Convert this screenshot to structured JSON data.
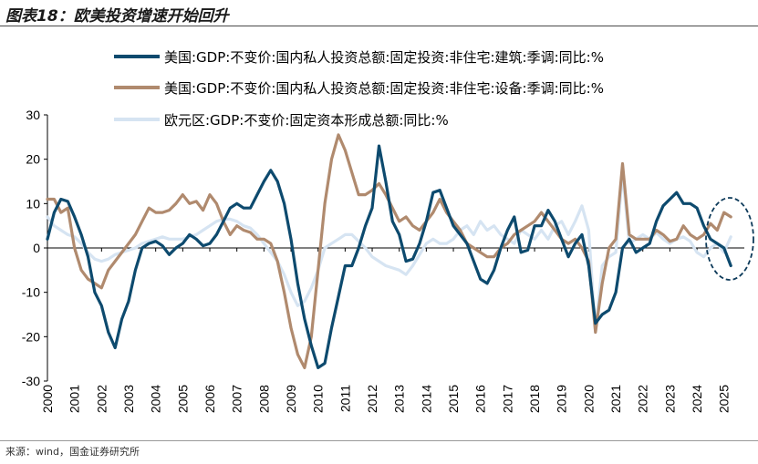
{
  "header": {
    "title": "图表18：欧美投资增速开始回升"
  },
  "footer": {
    "source": "来源：wind，国金证券研究所"
  },
  "colors": {
    "series_us_building": "#0d4a6e",
    "series_us_equipment": "#b08a6e",
    "series_eu": "#d6e4f2",
    "axis": "#000000",
    "ellipse": "#0d3a5a"
  },
  "chart_data": {
    "type": "line",
    "title": "图表18：欧美投资增速开始回升",
    "xlabel": "",
    "ylabel": "",
    "ylim": [
      -30,
      30
    ],
    "xlim": [
      2000.0,
      2025.75
    ],
    "yticks": [
      "30",
      "20",
      "10",
      "0",
      "-10",
      "-20",
      "-30"
    ],
    "ytick_values": [
      30,
      20,
      10,
      0,
      -10,
      -20,
      -30
    ],
    "xticks": [
      "2000",
      "2001",
      "2002",
      "2003",
      "2004",
      "2005",
      "2006",
      "2007",
      "2008",
      "2009",
      "2010",
      "2011",
      "2012",
      "2013",
      "2014",
      "2015",
      "2016",
      "2017",
      "2018",
      "2019",
      "2020",
      "2021",
      "2022",
      "2023",
      "2024",
      "2025"
    ],
    "legend_position": "top",
    "annotation": "dashed ellipse highlighting 2024-2025 rebound",
    "series": [
      {
        "name": "美国:GDP:不变价:国内私人投资总额:固定投资:非住宅:建筑:季调:同比:%",
        "points": [
          [
            2000.0,
            2
          ],
          [
            2000.25,
            8
          ],
          [
            2000.5,
            11
          ],
          [
            2000.75,
            10.5
          ],
          [
            2001.0,
            7
          ],
          [
            2001.25,
            3
          ],
          [
            2001.5,
            -2
          ],
          [
            2001.75,
            -10
          ],
          [
            2002.0,
            -13
          ],
          [
            2002.25,
            -19
          ],
          [
            2002.5,
            -22.5
          ],
          [
            2002.75,
            -16
          ],
          [
            2003.0,
            -12
          ],
          [
            2003.25,
            -5
          ],
          [
            2003.5,
            0
          ],
          [
            2003.75,
            1
          ],
          [
            2004.0,
            1.5
          ],
          [
            2004.25,
            0.5
          ],
          [
            2004.5,
            -1.5
          ],
          [
            2004.75,
            0
          ],
          [
            2005.0,
            1
          ],
          [
            2005.25,
            3
          ],
          [
            2005.5,
            2
          ],
          [
            2005.75,
            0.5
          ],
          [
            2006.0,
            1
          ],
          [
            2006.25,
            3
          ],
          [
            2006.5,
            6
          ],
          [
            2006.75,
            9
          ],
          [
            2007.0,
            10
          ],
          [
            2007.25,
            9
          ],
          [
            2007.5,
            9
          ],
          [
            2007.75,
            12
          ],
          [
            2008.0,
            15
          ],
          [
            2008.25,
            17.5
          ],
          [
            2008.5,
            15
          ],
          [
            2008.75,
            10
          ],
          [
            2009.0,
            2
          ],
          [
            2009.25,
            -8
          ],
          [
            2009.5,
            -16
          ],
          [
            2009.75,
            -22
          ],
          [
            2010.0,
            -27
          ],
          [
            2010.25,
            -26
          ],
          [
            2010.5,
            -18
          ],
          [
            2010.75,
            -11
          ],
          [
            2011.0,
            -4
          ],
          [
            2011.25,
            -4
          ],
          [
            2011.5,
            0
          ],
          [
            2011.75,
            5
          ],
          [
            2012.0,
            9
          ],
          [
            2012.25,
            23
          ],
          [
            2012.5,
            15
          ],
          [
            2012.75,
            6
          ],
          [
            2013.0,
            3
          ],
          [
            2013.25,
            -3
          ],
          [
            2013.5,
            -2.5
          ],
          [
            2013.75,
            1
          ],
          [
            2014.0,
            6
          ],
          [
            2014.25,
            12.5
          ],
          [
            2014.5,
            13
          ],
          [
            2014.75,
            9
          ],
          [
            2015.0,
            5
          ],
          [
            2015.25,
            3
          ],
          [
            2015.5,
            1
          ],
          [
            2015.75,
            -3
          ],
          [
            2016.0,
            -7
          ],
          [
            2016.25,
            -8
          ],
          [
            2016.5,
            -5
          ],
          [
            2016.75,
            0
          ],
          [
            2017.0,
            4
          ],
          [
            2017.25,
            7
          ],
          [
            2017.5,
            -1
          ],
          [
            2017.75,
            -0.5
          ],
          [
            2018.0,
            5
          ],
          [
            2018.25,
            5
          ],
          [
            2018.5,
            8.5
          ],
          [
            2018.75,
            6
          ],
          [
            2019.0,
            2
          ],
          [
            2019.25,
            -2
          ],
          [
            2019.5,
            1
          ],
          [
            2019.75,
            3
          ],
          [
            2020.0,
            -4
          ],
          [
            2020.25,
            -17
          ],
          [
            2020.5,
            -15
          ],
          [
            2020.75,
            -14
          ],
          [
            2021.0,
            -10
          ],
          [
            2021.25,
            0
          ],
          [
            2021.5,
            2
          ],
          [
            2021.75,
            -1
          ],
          [
            2022.0,
            0
          ],
          [
            2022.25,
            1
          ],
          [
            2022.5,
            6
          ],
          [
            2022.75,
            9.5
          ],
          [
            2023.0,
            11
          ],
          [
            2023.25,
            12.5
          ],
          [
            2023.5,
            10
          ],
          [
            2023.75,
            10
          ],
          [
            2024.0,
            9
          ],
          [
            2024.25,
            5
          ],
          [
            2024.5,
            2
          ],
          [
            2024.75,
            1
          ],
          [
            2025.0,
            0
          ],
          [
            2025.25,
            -4
          ]
        ]
      },
      {
        "name": "美国:GDP:不变价:国内私人投资总额:固定投资:非住宅:设备:季调:同比:%",
        "points": [
          [
            2000.0,
            11
          ],
          [
            2000.25,
            11
          ],
          [
            2000.5,
            8
          ],
          [
            2000.75,
            9
          ],
          [
            2001.0,
            0
          ],
          [
            2001.25,
            -5
          ],
          [
            2001.5,
            -7
          ],
          [
            2001.75,
            -8
          ],
          [
            2002.0,
            -9
          ],
          [
            2002.25,
            -5
          ],
          [
            2002.5,
            -3
          ],
          [
            2002.75,
            -1
          ],
          [
            2003.0,
            1
          ],
          [
            2003.25,
            3
          ],
          [
            2003.5,
            6
          ],
          [
            2003.75,
            9
          ],
          [
            2004.0,
            8
          ],
          [
            2004.25,
            8
          ],
          [
            2004.5,
            8.5
          ],
          [
            2004.75,
            10
          ],
          [
            2005.0,
            12
          ],
          [
            2005.25,
            10
          ],
          [
            2005.5,
            10.5
          ],
          [
            2005.75,
            8.5
          ],
          [
            2006.0,
            12
          ],
          [
            2006.25,
            10
          ],
          [
            2006.5,
            6
          ],
          [
            2006.75,
            3
          ],
          [
            2007.0,
            5
          ],
          [
            2007.25,
            4
          ],
          [
            2007.5,
            3.5
          ],
          [
            2007.75,
            2
          ],
          [
            2008.0,
            2
          ],
          [
            2008.25,
            1
          ],
          [
            2008.5,
            -3
          ],
          [
            2008.75,
            -10
          ],
          [
            2009.0,
            -18
          ],
          [
            2009.25,
            -24
          ],
          [
            2009.5,
            -27
          ],
          [
            2009.75,
            -20
          ],
          [
            2010.0,
            -5
          ],
          [
            2010.25,
            10
          ],
          [
            2010.5,
            20
          ],
          [
            2010.75,
            25.5
          ],
          [
            2011.0,
            22
          ],
          [
            2011.25,
            17
          ],
          [
            2011.5,
            12
          ],
          [
            2011.75,
            12
          ],
          [
            2012.0,
            13
          ],
          [
            2012.25,
            14.5
          ],
          [
            2012.5,
            12
          ],
          [
            2012.75,
            9
          ],
          [
            2013.0,
            6
          ],
          [
            2013.25,
            7
          ],
          [
            2013.5,
            5
          ],
          [
            2013.75,
            4
          ],
          [
            2014.0,
            6
          ],
          [
            2014.25,
            8
          ],
          [
            2014.5,
            11
          ],
          [
            2014.75,
            8
          ],
          [
            2015.0,
            6
          ],
          [
            2015.25,
            4
          ],
          [
            2015.5,
            1
          ],
          [
            2015.75,
            0
          ],
          [
            2016.0,
            -1
          ],
          [
            2016.25,
            -2
          ],
          [
            2016.5,
            -2
          ],
          [
            2016.75,
            0
          ],
          [
            2017.0,
            1
          ],
          [
            2017.25,
            3
          ],
          [
            2017.5,
            4
          ],
          [
            2017.75,
            5
          ],
          [
            2018.0,
            6
          ],
          [
            2018.25,
            8
          ],
          [
            2018.5,
            6
          ],
          [
            2018.75,
            4
          ],
          [
            2019.0,
            2
          ],
          [
            2019.25,
            1
          ],
          [
            2019.5,
            2
          ],
          [
            2019.75,
            0
          ],
          [
            2020.0,
            -3
          ],
          [
            2020.25,
            -19
          ],
          [
            2020.5,
            -8
          ],
          [
            2020.75,
            0
          ],
          [
            2021.0,
            2
          ],
          [
            2021.25,
            19
          ],
          [
            2021.5,
            3
          ],
          [
            2021.75,
            2
          ],
          [
            2022.0,
            2
          ],
          [
            2022.25,
            2
          ],
          [
            2022.5,
            4
          ],
          [
            2022.75,
            3
          ],
          [
            2023.0,
            1.5
          ],
          [
            2023.25,
            2
          ],
          [
            2023.5,
            5
          ],
          [
            2023.75,
            3
          ],
          [
            2024.0,
            2
          ],
          [
            2024.25,
            3
          ],
          [
            2024.5,
            5.5
          ],
          [
            2024.75,
            4
          ],
          [
            2025.0,
            8
          ],
          [
            2025.25,
            7
          ]
        ]
      },
      {
        "name": "欧元区:GDP:不变价:固定资本形成总额:同比:%",
        "points": [
          [
            2000.0,
            7
          ],
          [
            2000.25,
            5
          ],
          [
            2000.5,
            4
          ],
          [
            2000.75,
            3
          ],
          [
            2001.0,
            2.5
          ],
          [
            2001.25,
            1
          ],
          [
            2001.5,
            -1
          ],
          [
            2001.75,
            -2.5
          ],
          [
            2002.0,
            -3
          ],
          [
            2002.25,
            -2.5
          ],
          [
            2002.5,
            -1.5
          ],
          [
            2002.75,
            -1
          ],
          [
            2003.0,
            -0.5
          ],
          [
            2003.25,
            0
          ],
          [
            2003.5,
            1
          ],
          [
            2003.75,
            1.5
          ],
          [
            2004.0,
            2
          ],
          [
            2004.25,
            2.5
          ],
          [
            2004.5,
            2
          ],
          [
            2004.75,
            2
          ],
          [
            2005.0,
            2
          ],
          [
            2005.25,
            2.5
          ],
          [
            2005.5,
            3
          ],
          [
            2005.75,
            4
          ],
          [
            2006.0,
            5
          ],
          [
            2006.25,
            6
          ],
          [
            2006.5,
            6.5
          ],
          [
            2006.75,
            6.5
          ],
          [
            2007.0,
            6
          ],
          [
            2007.25,
            5
          ],
          [
            2007.5,
            4.5
          ],
          [
            2007.75,
            3
          ],
          [
            2008.0,
            1
          ],
          [
            2008.25,
            -1
          ],
          [
            2008.5,
            -3
          ],
          [
            2008.75,
            -6
          ],
          [
            2009.0,
            -10
          ],
          [
            2009.25,
            -13
          ],
          [
            2009.5,
            -12
          ],
          [
            2009.75,
            -9
          ],
          [
            2010.0,
            -5
          ],
          [
            2010.25,
            0
          ],
          [
            2010.5,
            1
          ],
          [
            2010.75,
            2
          ],
          [
            2011.0,
            3
          ],
          [
            2011.25,
            3
          ],
          [
            2011.5,
            1.5
          ],
          [
            2011.75,
            0
          ],
          [
            2012.0,
            -2
          ],
          [
            2012.25,
            -3
          ],
          [
            2012.5,
            -4
          ],
          [
            2012.75,
            -4.5
          ],
          [
            2013.0,
            -5
          ],
          [
            2013.25,
            -6
          ],
          [
            2013.5,
            -4
          ],
          [
            2013.75,
            -1.5
          ],
          [
            2014.0,
            1
          ],
          [
            2014.25,
            2
          ],
          [
            2014.5,
            1
          ],
          [
            2014.75,
            1
          ],
          [
            2015.0,
            2
          ],
          [
            2015.25,
            4
          ],
          [
            2015.5,
            5
          ],
          [
            2015.75,
            3
          ],
          [
            2016.0,
            6
          ],
          [
            2016.25,
            4
          ],
          [
            2016.5,
            5
          ],
          [
            2016.75,
            3
          ],
          [
            2017.0,
            2
          ],
          [
            2017.25,
            1
          ],
          [
            2017.5,
            4
          ],
          [
            2017.75,
            3
          ],
          [
            2018.0,
            2
          ],
          [
            2018.25,
            4
          ],
          [
            2018.5,
            2
          ],
          [
            2018.75,
            5
          ],
          [
            2019.0,
            6
          ],
          [
            2019.25,
            3
          ],
          [
            2019.5,
            6
          ],
          [
            2019.75,
            9.5
          ],
          [
            2020.0,
            4
          ],
          [
            2020.25,
            -19
          ],
          [
            2020.5,
            -4
          ],
          [
            2020.75,
            -2
          ],
          [
            2021.0,
            -1
          ],
          [
            2021.25,
            17
          ],
          [
            2021.5,
            1
          ],
          [
            2021.75,
            2
          ],
          [
            2022.0,
            3
          ],
          [
            2022.25,
            2
          ],
          [
            2022.5,
            3.5
          ],
          [
            2022.75,
            2
          ],
          [
            2023.0,
            1
          ],
          [
            2023.25,
            2
          ],
          [
            2023.5,
            2.5
          ],
          [
            2023.75,
            1.5
          ],
          [
            2024.0,
            -1
          ],
          [
            2024.25,
            -2
          ],
          [
            2024.5,
            0
          ],
          [
            2024.75,
            1
          ],
          [
            2025.0,
            -1
          ],
          [
            2025.25,
            2.5
          ]
        ]
      }
    ]
  }
}
